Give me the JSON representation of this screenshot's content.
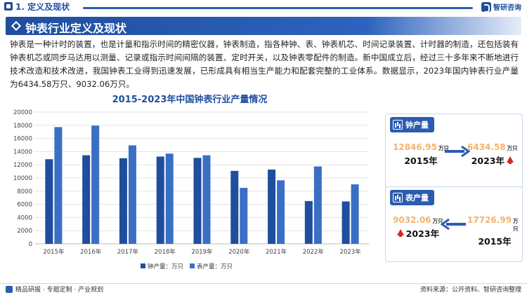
{
  "header": {
    "section": "1. 定义及现状",
    "logo": "智研咨询"
  },
  "title": "钟表行业定义及现状",
  "intro": "钟表是一种计时的装置，也是计量和指示时间的精密仪器，钟表制造，指各种钟、表、钟表机芯、时间记录装置、计时器的制造，还包括装有钟表机芯或同步马达用以测量、记录或指示时间间隔的装置、定时开关，以及钟表零配件的制造。新中国成立后，经过三十多年来不断地进行技术改造和技术改进，我国钟表工业得到迅速发展，已形成具有相当生产能力和配套完整的工业体系。数据显示，2023年国内钟表行业产量为6434.58万只、9032.06万只。",
  "chart_data": {
    "type": "bar",
    "title": "2015-2023年中国钟表行业产量情况",
    "categories": [
      "2015年",
      "2016年",
      "2017年",
      "2018年",
      "2019年",
      "2020年",
      "2021年",
      "2022年",
      "2023年"
    ],
    "series": [
      {
        "name": "钟产量：万只",
        "color": "#1f4e9e",
        "values": [
          12847,
          13450,
          13000,
          13250,
          13050,
          11080,
          11280,
          6500,
          6434.58
        ]
      },
      {
        "name": "表产量：万只",
        "color": "#3a6fc4",
        "values": [
          17727,
          17950,
          14950,
          13700,
          13450,
          8500,
          9650,
          11750,
          9032.06
        ]
      }
    ],
    "ylim": [
      0,
      20000
    ],
    "yticks": [
      "0",
      "2000",
      "4000",
      "6000",
      "8000",
      "10000",
      "12000",
      "14000",
      "16000",
      "18000",
      "20000"
    ],
    "grid": true,
    "legend": "bottom"
  },
  "cards": {
    "clock": {
      "title": "钟产量",
      "from_value": "12846.95",
      "from_unit": "万只",
      "from_year": "2015年",
      "to_value": "6434.58",
      "to_unit": "万只",
      "to_year": "2023年",
      "arrow_color": "#2b5cb0"
    },
    "watch": {
      "title": "表产量",
      "from_value": "9032.06",
      "from_unit": "万只",
      "from_year": "2023年",
      "to_value": "17726.99",
      "to_unit": "万只",
      "to_year": "2015年",
      "arrow_color": "#2b5cb0"
    }
  },
  "footer": {
    "left": "精品研报 · 专题定制 · 产业规划",
    "right": "资料来源：公开资料、智研咨询整理"
  }
}
